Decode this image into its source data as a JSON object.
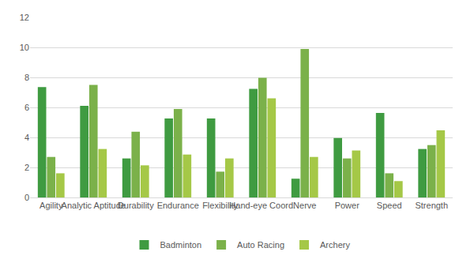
{
  "chart_data": {
    "type": "bar",
    "categories": [
      "Agility",
      "Analytic Aptitude",
      "Durability",
      "Endurance",
      "Flexibility",
      "Hand-eye Coord.",
      "Nerve",
      "Power",
      "Speed",
      "Strength"
    ],
    "series": [
      {
        "name": "Badminton",
        "color": "#3f9b41",
        "values": [
          7.35,
          6.1,
          2.6,
          5.26,
          5.26,
          7.24,
          1.25,
          3.96,
          5.63,
          3.23
        ]
      },
      {
        "name": "Auto Racing",
        "color": "#7bb14a",
        "values": [
          2.7,
          7.5,
          4.38,
          5.89,
          1.72,
          7.97,
          9.9,
          2.6,
          1.61,
          3.49
        ]
      },
      {
        "name": "Archery",
        "color": "#a5c847",
        "values": [
          1.61,
          3.23,
          2.14,
          2.86,
          2.6,
          6.61,
          2.7,
          3.13,
          1.09,
          4.48
        ]
      }
    ],
    "ylim": [
      0,
      12
    ],
    "yticks": [
      0,
      2,
      4,
      6,
      8,
      10,
      12
    ],
    "grid": true,
    "legend": "bottom"
  }
}
